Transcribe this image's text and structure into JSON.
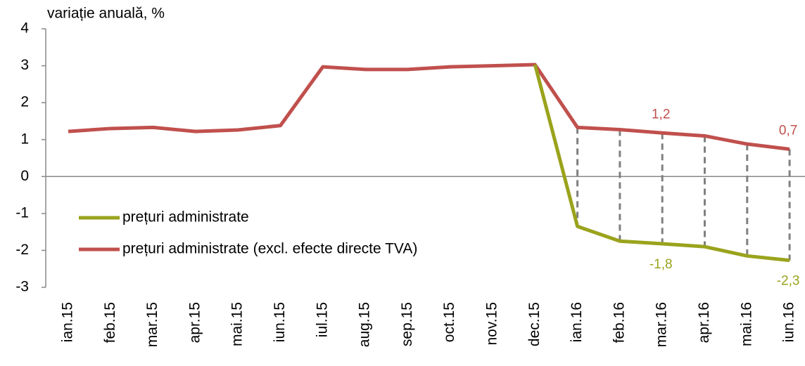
{
  "chart_data": {
    "type": "line",
    "title": "variație anuală, %",
    "categories": [
      "ian.15",
      "feb.15",
      "mar.15",
      "apr.15",
      "mai.15",
      "iun.15",
      "iul.15",
      "aug.15",
      "sep.15",
      "oct.15",
      "nov.15",
      "dec.15",
      "ian.16",
      "feb.16",
      "mar.16",
      "apr.16",
      "mai.16",
      "iun.16"
    ],
    "series": [
      {
        "name": "prețuri administrate",
        "color": "#9aa31c",
        "values": [
          null,
          null,
          null,
          null,
          null,
          null,
          null,
          null,
          null,
          null,
          null,
          3.03,
          -1.35,
          -1.75,
          -1.82,
          -1.9,
          -2.15,
          -2.27
        ],
        "value_labels": [
          null,
          null,
          null,
          null,
          null,
          null,
          null,
          null,
          null,
          null,
          null,
          null,
          null,
          null,
          "-1,8",
          null,
          null,
          "-2,3"
        ]
      },
      {
        "name": "prețuri administrate (excl. efecte directe TVA)",
        "color": "#c0504d",
        "values": [
          1.22,
          1.3,
          1.33,
          1.22,
          1.26,
          1.38,
          2.97,
          2.9,
          2.9,
          2.97,
          3.0,
          3.03,
          1.33,
          1.27,
          1.18,
          1.1,
          0.88,
          0.74
        ],
        "value_labels": [
          null,
          null,
          null,
          null,
          null,
          null,
          null,
          null,
          null,
          null,
          null,
          null,
          null,
          null,
          "1,2",
          null,
          null,
          "0,7"
        ]
      }
    ],
    "ylim": [
      -3,
      4
    ],
    "yticks": [
      -3,
      -2,
      -1,
      0,
      1,
      2,
      3,
      4
    ]
  }
}
